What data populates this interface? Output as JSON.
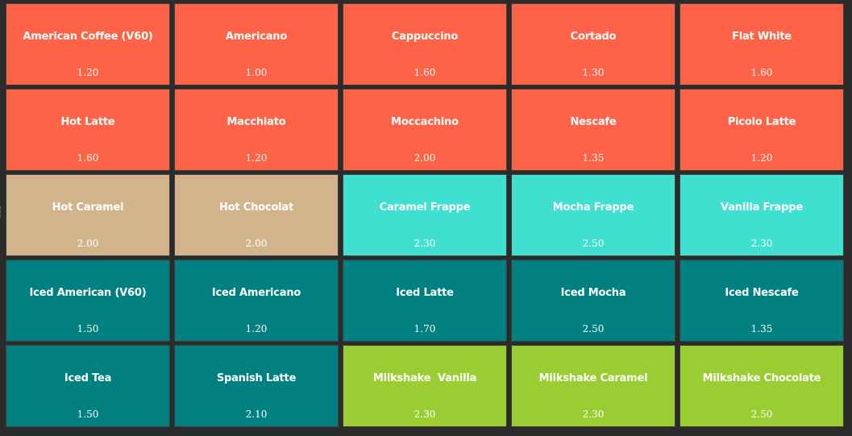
{
  "colors": {
    "background": "#2b2b2b",
    "coffee": "#ff6347",
    "chocolate": "#d2b48c",
    "frappe": "#40e0d0",
    "iced": "#008080",
    "milkshake": "#9acd32"
  },
  "menu": {
    "items": [
      {
        "name": "American Coffee (V60)",
        "price": "1.20",
        "category": "coffee"
      },
      {
        "name": "Americano",
        "price": "1.00",
        "category": "coffee"
      },
      {
        "name": "Cappuccino",
        "price": "1.60",
        "category": "coffee"
      },
      {
        "name": "Cortado",
        "price": "1.30",
        "category": "coffee"
      },
      {
        "name": "Flat White",
        "price": "1.60",
        "category": "coffee"
      },
      {
        "name": "Hot Latte",
        "price": "1.60",
        "category": "coffee"
      },
      {
        "name": "Macchiato",
        "price": "1.20",
        "category": "coffee"
      },
      {
        "name": "Moccachino",
        "price": "2.00",
        "category": "coffee"
      },
      {
        "name": "Nescafe",
        "price": "1.35",
        "category": "coffee"
      },
      {
        "name": "Picolo Latte",
        "price": "1.20",
        "category": "coffee"
      },
      {
        "name": "Hot Caramel",
        "price": "2.00",
        "category": "chocolate"
      },
      {
        "name": "Hot Chocolat",
        "price": "2.00",
        "category": "chocolate"
      },
      {
        "name": "Caramel Frappe",
        "price": "2.30",
        "category": "frappe"
      },
      {
        "name": "Mocha Frappe",
        "price": "2.50",
        "category": "frappe"
      },
      {
        "name": "Vanilla Frappe",
        "price": "2.30",
        "category": "frappe"
      },
      {
        "name": "Iced American (V60)",
        "price": "1.50",
        "category": "iced"
      },
      {
        "name": "Iced Americano",
        "price": "1.20",
        "category": "iced"
      },
      {
        "name": "Iced Latte",
        "price": "1.70",
        "category": "iced"
      },
      {
        "name": "Iced Mocha",
        "price": "2.50",
        "category": "iced"
      },
      {
        "name": "Iced Nescafe",
        "price": "1.35",
        "category": "iced"
      },
      {
        "name": "Iced Tea",
        "price": "1.50",
        "category": "iced"
      },
      {
        "name": "Spanish Latte",
        "price": "2.10",
        "category": "iced"
      },
      {
        "name": "Milkshake  Vanilla",
        "price": "2.30",
        "category": "milkshake"
      },
      {
        "name": "Milkshake Caramel",
        "price": "2.30",
        "category": "milkshake"
      },
      {
        "name": "Milkshake Chocolate",
        "price": "2.50",
        "category": "milkshake"
      }
    ]
  }
}
